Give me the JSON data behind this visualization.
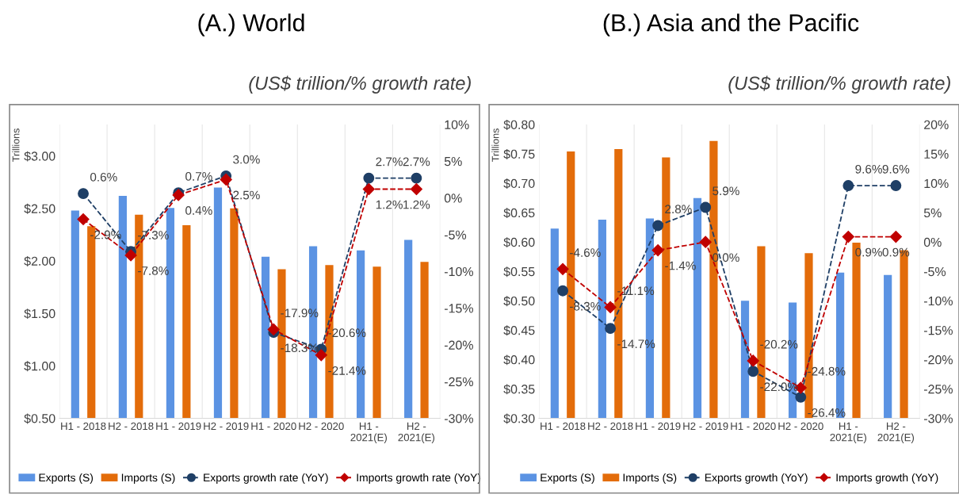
{
  "chart_data": [
    {
      "type": "bar",
      "title": "(A.) World",
      "subtitle": "(US$ trillion/% growth rate)",
      "ylabel": "Trillions",
      "categories": [
        "H1 - 2018",
        "H2 - 2018",
        "H1 - 2019",
        "H2 - 2019",
        "H1 - 2020",
        "H2 - 2020",
        "H1 -\n2021(E)",
        "H2 -\n2021(E)"
      ],
      "series": [
        {
          "name": "Exports (S)",
          "color": "#5b93e3",
          "values": [
            2.48,
            2.62,
            2.505,
            2.7,
            2.04,
            2.14,
            2.1,
            2.2
          ]
        },
        {
          "name": "Imports (S)",
          "color": "#e36c0a",
          "values": [
            2.33,
            2.44,
            2.34,
            2.5,
            1.92,
            1.96,
            1.945,
            1.99
          ]
        },
        {
          "name": "Exports growth rate (YoY)",
          "type": "line",
          "axis": "y2",
          "color": "#1f3f66",
          "marker": "circle",
          "line_style": "dashed",
          "values": [
            0.6,
            -7.3,
            0.7,
            3.0,
            -18.3,
            -20.6,
            2.7,
            2.7
          ],
          "value_labels": [
            "0.6%",
            "-7.3%",
            "0.7%",
            "3.0%",
            "-18.3%",
            "-20.6%",
            "2.7%",
            "2.7%"
          ]
        },
        {
          "name": "Imports growth rate (YoY)",
          "type": "line",
          "axis": "y2",
          "color": "#c00000",
          "marker": "diamond",
          "line_style": "dashed",
          "values": [
            -2.9,
            -7.8,
            0.4,
            2.5,
            -17.9,
            -21.4,
            1.2,
            1.2
          ],
          "value_labels": [
            "-2.9%",
            "-7.8%",
            "0.4%",
            "2.5%",
            "-17.9%",
            "-21.4%",
            "1.2%",
            "1.2%"
          ]
        }
      ],
      "ylim": [
        0.5,
        3.3
      ],
      "yticks": [
        {
          "value": 0.5,
          "label": "$0.50"
        },
        {
          "value": 1.0,
          "label": "$1.00"
        },
        {
          "value": 1.5,
          "label": "$1.50"
        },
        {
          "value": 2.0,
          "label": "$2.00"
        },
        {
          "value": 2.5,
          "label": "$2.50"
        },
        {
          "value": 3.0,
          "label": "$3.00"
        }
      ],
      "y2lim": [
        -30,
        10
      ],
      "y2ticks": [
        {
          "value": -30,
          "label": "-30%"
        },
        {
          "value": -25,
          "label": "-25%"
        },
        {
          "value": -20,
          "label": "-20%"
        },
        {
          "value": -15,
          "label": "-15%"
        },
        {
          "value": -10,
          "label": "-10%"
        },
        {
          "value": -5,
          "label": "-5%"
        },
        {
          "value": 0,
          "label": "0%"
        },
        {
          "value": 5,
          "label": "5%"
        },
        {
          "value": 10,
          "label": "10%"
        }
      ],
      "grid": "x",
      "legend": "bottom"
    },
    {
      "type": "bar",
      "title": "(B.) Asia and the Pacific",
      "subtitle": "(US$ trillion/% growth rate)",
      "ylabel": "Trillions",
      "categories": [
        "H1 - 2018",
        "H2 - 2018",
        "H1 - 2019",
        "H2 - 2019",
        "H1 - 2020",
        "H2 - 2020",
        "H1 -\n2021(E)",
        "H2 -\n2021(E)"
      ],
      "series": [
        {
          "name": "Exports (S)",
          "color": "#5b93e3",
          "values": [
            0.623,
            0.638,
            0.64,
            0.675,
            0.5,
            0.497,
            0.548,
            0.544
          ]
        },
        {
          "name": "Imports (S)",
          "color": "#e36c0a",
          "values": [
            0.754,
            0.758,
            0.744,
            0.772,
            0.593,
            0.581,
            0.599,
            0.586
          ]
        },
        {
          "name": "Exports growth (YoY)",
          "type": "line",
          "axis": "y2",
          "color": "#1f3f66",
          "marker": "circle",
          "line_style": "dashed",
          "values": [
            -8.3,
            -14.7,
            2.8,
            5.9,
            -22.0,
            -26.4,
            9.6,
            9.6
          ],
          "value_labels": [
            "-8.3%",
            "-14.7%",
            "2.8%",
            "5.9%",
            "-22.0%",
            "-26.4%",
            "9.6%",
            "9.6%"
          ]
        },
        {
          "name": "Imports growth (YoY)",
          "type": "line",
          "axis": "y2",
          "color": "#c00000",
          "marker": "diamond",
          "line_style": "dashed",
          "values": [
            -4.6,
            -11.1,
            -1.4,
            0.0,
            -20.2,
            -24.8,
            0.9,
            0.9
          ],
          "value_labels": [
            "-4.6%",
            "-11.1%",
            "-1.4%",
            "0.0%",
            "-20.2%",
            "-24.8%",
            "0.9%",
            "0.9%"
          ]
        }
      ],
      "ylim": [
        0.3,
        0.8
      ],
      "yticks": [
        {
          "value": 0.3,
          "label": "$0.30"
        },
        {
          "value": 0.35,
          "label": "$0.35"
        },
        {
          "value": 0.4,
          "label": "$0.40"
        },
        {
          "value": 0.45,
          "label": "$0.45"
        },
        {
          "value": 0.5,
          "label": "$0.50"
        },
        {
          "value": 0.55,
          "label": "$0.55"
        },
        {
          "value": 0.6,
          "label": "$0.60"
        },
        {
          "value": 0.65,
          "label": "$0.65"
        },
        {
          "value": 0.7,
          "label": "$0.70"
        },
        {
          "value": 0.75,
          "label": "$0.75"
        },
        {
          "value": 0.8,
          "label": "$0.80"
        }
      ],
      "y2lim": [
        -30,
        20
      ],
      "y2ticks": [
        {
          "value": -30,
          "label": "-30%"
        },
        {
          "value": -25,
          "label": "-25%"
        },
        {
          "value": -20,
          "label": "-20%"
        },
        {
          "value": -15,
          "label": "-15%"
        },
        {
          "value": -10,
          "label": "-10%"
        },
        {
          "value": -5,
          "label": "-5%"
        },
        {
          "value": 0,
          "label": "0%"
        },
        {
          "value": 5,
          "label": "5%"
        },
        {
          "value": 10,
          "label": "10%"
        },
        {
          "value": 15,
          "label": "15%"
        },
        {
          "value": 20,
          "label": "20%"
        }
      ],
      "grid": "x",
      "legend": "bottom"
    }
  ]
}
